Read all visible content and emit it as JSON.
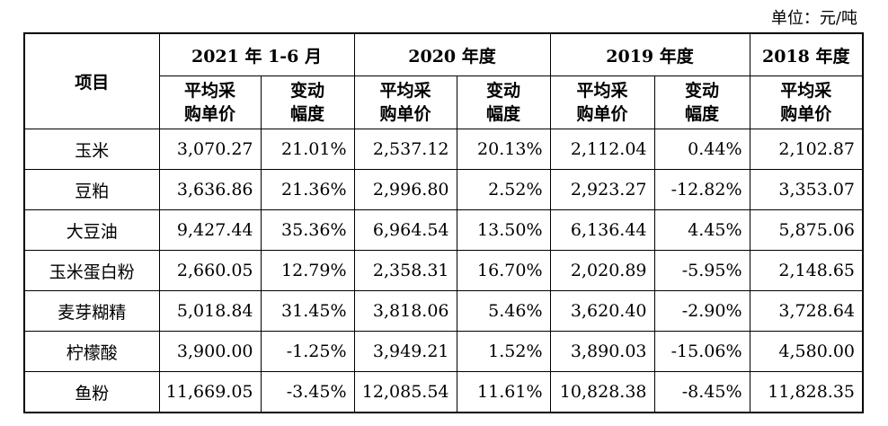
{
  "unit_label": "单位：元/吨",
  "header": {
    "item": "项目",
    "periods": [
      "2021 年 1-6 月",
      "2020 年度",
      "2019 年度",
      "2018 年度"
    ],
    "price_line1": "平均采",
    "price_line2": "购单价",
    "change_line1": "变动",
    "change_line2": "幅度"
  },
  "rows": [
    {
      "name": "玉米",
      "values": [
        "3,070.27",
        "21.01%",
        "2,537.12",
        "20.13%",
        "2,112.04",
        "0.44%",
        "2,102.87"
      ]
    },
    {
      "name": "豆粕",
      "values": [
        "3,636.86",
        "21.36%",
        "2,996.80",
        "2.52%",
        "2,923.27",
        "-12.82%",
        "3,353.07"
      ]
    },
    {
      "name": "大豆油",
      "values": [
        "9,427.44",
        "35.36%",
        "6,964.54",
        "13.50%",
        "6,136.44",
        "4.45%",
        "5,875.06"
      ]
    },
    {
      "name": "玉米蛋白粉",
      "values": [
        "2,660.05",
        "12.79%",
        "2,358.31",
        "16.70%",
        "2,020.89",
        "-5.95%",
        "2,148.65"
      ]
    },
    {
      "name": "麦芽糊精",
      "values": [
        "5,018.84",
        "31.45%",
        "3,818.06",
        "5.46%",
        "3,620.40",
        "-2.90%",
        "3,728.64"
      ]
    },
    {
      "name": "柠檬酸",
      "values": [
        "3,900.00",
        "-1.25%",
        "3,949.21",
        "1.52%",
        "3,890.03",
        "-15.06%",
        "4,580.00"
      ]
    },
    {
      "name": "鱼粉",
      "values": [
        "11,669.05",
        "-3.45%",
        "12,085.54",
        "11.61%",
        "10,828.38",
        "-8.45%",
        "11,828.35"
      ]
    }
  ]
}
